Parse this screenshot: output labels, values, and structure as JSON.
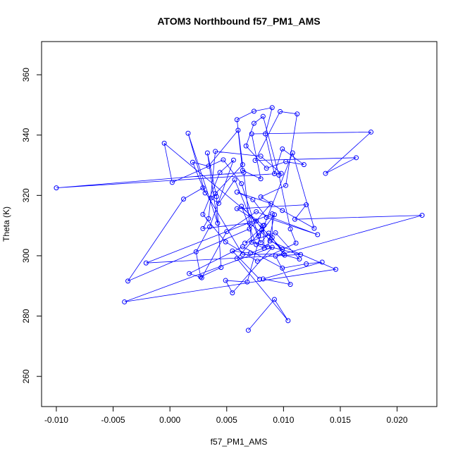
{
  "chart_data": {
    "type": "line",
    "title": "ATOM3 Northbound f57_PM1_AMS",
    "xlabel": "f57_PM1_AMS",
    "ylabel": "Theta (K)",
    "xlim": [
      -0.0113,
      0.0235
    ],
    "ylim": [
      250,
      371
    ],
    "x_ticks": [
      -0.01,
      -0.005,
      0.0,
      0.005,
      0.01,
      0.015,
      0.02
    ],
    "x_tick_labels": [
      "-0.010",
      "-0.005",
      "0.000",
      "0.005",
      "0.010",
      "0.015",
      "0.020"
    ],
    "y_ticks": [
      260,
      280,
      300,
      320,
      340,
      360
    ],
    "y_tick_labels": [
      "260",
      "280",
      "300",
      "320",
      "340",
      "360"
    ],
    "grid": false,
    "legend": "none",
    "marker": "open-circle",
    "line_color": "#0000ff",
    "series": [
      {
        "points": [
          [
            0.0069,
            275.3
          ],
          [
            0.0092,
            285.5
          ],
          [
            0.0104,
            278.5
          ],
          [
            0.0059,
            299.1
          ],
          [
            0.0081,
            308.6
          ],
          [
            0.0068,
            291.3
          ],
          [
            0.0049,
            291.8
          ],
          [
            0.0055,
            287.7
          ],
          [
            0.009,
            302.8
          ],
          [
            -0.004,
            284.7
          ],
          [
            0.0146,
            295.5
          ],
          [
            0.0088,
            304.9
          ],
          [
            0.0076,
            311.5
          ],
          [
            0.0059,
            315.6
          ],
          [
            0.012,
            316.9
          ],
          [
            0.011,
            312.1
          ],
          [
            0.0222,
            313.4
          ],
          [
            0.0093,
            299.9
          ],
          [
            0.0106,
            290.5
          ],
          [
            0.0082,
            292.3
          ],
          [
            0.0134,
            297.9
          ],
          [
            0.012,
            297.3
          ],
          [
            0.0099,
            295.9
          ],
          [
            0.0064,
            303.0
          ],
          [
            0.0017,
            294.1
          ],
          [
            0.0028,
            292.7
          ],
          [
            0.005,
            308.0
          ],
          [
            0.0076,
            314.6
          ],
          [
            0.013,
            307.0
          ],
          [
            0.0085,
            312.7
          ],
          [
            0.0073,
            318.6
          ],
          [
            0.0059,
            321.1
          ],
          [
            0.0089,
            317.3
          ],
          [
            0.007,
            308.9
          ],
          [
            -0.0037,
            291.6
          ],
          [
            0.0012,
            318.8
          ],
          [
            0.0029,
            322.5
          ],
          [
            0.0064,
            300.4
          ],
          [
            0.01,
            300.6
          ],
          [
            0.0087,
            307.5
          ],
          [
            0.008,
            304.3
          ],
          [
            0.0057,
            325.2
          ],
          [
            0.0043,
            317.4
          ],
          [
            0.0036,
            319.1
          ],
          [
            0.004,
            320.6
          ],
          [
            0.0064,
            330.2
          ],
          [
            0.0059,
            345.1
          ],
          [
            0.0074,
            347.9
          ],
          [
            0.009,
            349.1
          ],
          [
            0.0084,
            340.4
          ],
          [
            0.0092,
            327.2
          ],
          [
            0.0099,
            335.4
          ],
          [
            0.0118,
            330.2
          ],
          [
            0.0102,
            331.2
          ],
          [
            0.0085,
            329.0
          ],
          [
            0.0067,
            336.4
          ],
          [
            0.0074,
            343.9
          ],
          [
            0.0082,
            346.2
          ],
          [
            0.0096,
            326.7
          ],
          [
            0.0106,
            308.9
          ],
          [
            0.0111,
            304.2
          ],
          [
            0.0077,
            298.2
          ],
          [
            0.0049,
            304.6
          ],
          [
            0.0029,
            313.7
          ],
          [
            0.0044,
            327.6
          ],
          [
            0.0056,
            331.7
          ],
          [
            0.0035,
            309.6
          ],
          [
            0.0023,
            301.3
          ],
          [
            0.0027,
            293.0
          ],
          [
            0.0045,
            296.1
          ],
          [
            0.0041,
            319.6
          ],
          [
            0.0033,
            334.1
          ],
          [
            0.0042,
            310.8
          ],
          [
            0.0016,
            340.6
          ],
          [
            0.0031,
            320.8
          ],
          [
            0.002,
            331.0
          ],
          [
            0.0034,
            329.7
          ],
          [
            0.006,
            341.6
          ],
          [
            0.0064,
            328.3
          ],
          [
            0.008,
            325.5
          ],
          [
            0.0072,
            340.4
          ],
          [
            0.0177,
            341.0
          ],
          [
            0.0137,
            327.3
          ],
          [
            0.0164,
            332.5
          ],
          [
            0.0075,
            331.6
          ],
          [
            0.0097,
            347.8
          ],
          [
            0.0112,
            347.0
          ],
          [
            0.0102,
            323.3
          ],
          [
            0.008,
            319.5
          ],
          [
            0.0099,
            315.0
          ],
          [
            0.0127,
            309.1
          ],
          [
            0.0108,
            334.1
          ],
          [
            0.0083,
            310.1
          ],
          [
            0.0066,
            304.2
          ],
          [
            0.0093,
            307.6
          ],
          [
            0.0114,
            298.9
          ],
          [
            0.0101,
            300.2
          ],
          [
            0.009,
            306.0
          ],
          [
            0.009,
            313.9
          ],
          [
            -0.0021,
            297.6
          ],
          [
            0.0115,
            300.4
          ],
          [
            0.0072,
            304.5
          ],
          [
            0.0065,
            327.6
          ],
          [
            -0.01,
            322.5
          ],
          [
            0.0098,
            327.3
          ],
          [
            0.008,
            333.0
          ],
          [
            0.004,
            334.6
          ],
          [
            0.0034,
            312.3
          ],
          [
            0.0029,
            309.0
          ],
          [
            0.007,
            310.8
          ],
          [
            0.0099,
            302.1
          ],
          [
            0.0063,
            316.4
          ],
          [
            0.0076,
            303.7
          ],
          [
            0.0083,
            302.5
          ],
          [
            0.0082,
            310.0
          ],
          [
            -0.0005,
            337.3
          ],
          [
            0.0002,
            324.3
          ],
          [
            0.0047,
            331.8
          ],
          [
            0.0063,
            323.9
          ],
          [
            0.0078,
            306.6
          ],
          [
            0.0092,
            313.6
          ],
          [
            0.0086,
            303.0
          ],
          [
            0.0071,
            300.9
          ],
          [
            0.0055,
            301.6
          ],
          [
            0.0079,
            292.2
          ]
        ]
      }
    ]
  }
}
